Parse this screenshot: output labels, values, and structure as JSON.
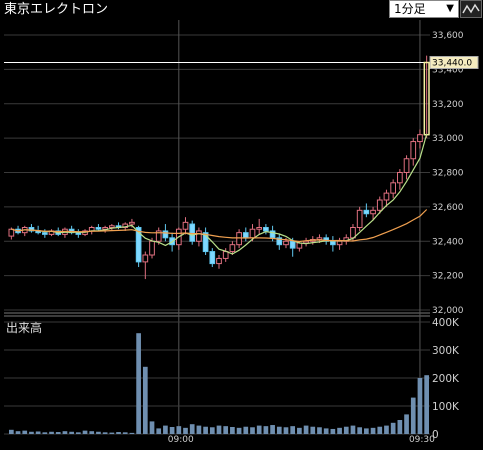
{
  "header": {
    "title": "東京エレクトロン",
    "interval_label": "1分足",
    "chart_type_icon": "line-chart-icon"
  },
  "colors": {
    "background": "#000000",
    "grid": "#3a3a3a",
    "up": "#f0a0a8",
    "down": "#7fd8ff",
    "ma_short": "#b9e08a",
    "ma_long": "#f0a050",
    "volume": "#6f8fb0",
    "price_line": "#f5f0a0"
  },
  "chart_data": {
    "type": "candlestick",
    "price_axis": {
      "ticks": [
        "33,600",
        "33,400",
        "33,200",
        "33,000",
        "32,800",
        "32,600",
        "32,400",
        "32,200",
        "32,000"
      ],
      "min": 32000,
      "max": 33600
    },
    "volume_axis": {
      "title": "出来高",
      "ticks": [
        "400K",
        "300K",
        "200K",
        "100K",
        "0"
      ],
      "max": 400000
    },
    "time_labels": [
      {
        "label": "09:00",
        "index": 25
      },
      {
        "label": "09:30",
        "index": 61
      }
    ],
    "last_price_label": "33,440.0",
    "last_price": 33440,
    "candles": [
      [
        32430,
        32480,
        32410,
        32470
      ],
      [
        32470,
        32490,
        32440,
        32450
      ],
      [
        32450,
        32490,
        32430,
        32480
      ],
      [
        32480,
        32500,
        32450,
        32460
      ],
      [
        32460,
        32490,
        32440,
        32450
      ],
      [
        32450,
        32470,
        32420,
        32440
      ],
      [
        32440,
        32470,
        32430,
        32460
      ],
      [
        32460,
        32480,
        32430,
        32440
      ],
      [
        32440,
        32480,
        32420,
        32470
      ],
      [
        32470,
        32490,
        32440,
        32450
      ],
      [
        32450,
        32470,
        32420,
        32440
      ],
      [
        32440,
        32470,
        32430,
        32460
      ],
      [
        32460,
        32490,
        32440,
        32480
      ],
      [
        32480,
        32500,
        32460,
        32470
      ],
      [
        32470,
        32490,
        32450,
        32480
      ],
      [
        32480,
        32500,
        32460,
        32490
      ],
      [
        32490,
        32510,
        32470,
        32480
      ],
      [
        32480,
        32510,
        32460,
        32500
      ],
      [
        32500,
        32530,
        32480,
        32510
      ],
      [
        32480,
        32490,
        32250,
        32280
      ],
      [
        32280,
        32340,
        32180,
        32320
      ],
      [
        32320,
        32420,
        32300,
        32400
      ],
      [
        32400,
        32480,
        32380,
        32460
      ],
      [
        32460,
        32500,
        32400,
        32420
      ],
      [
        32420,
        32450,
        32340,
        32380
      ],
      [
        32380,
        32480,
        32350,
        32470
      ],
      [
        32470,
        32540,
        32440,
        32510
      ],
      [
        32500,
        32520,
        32380,
        32400
      ],
      [
        32400,
        32480,
        32370,
        32460
      ],
      [
        32450,
        32480,
        32320,
        32340
      ],
      [
        32340,
        32360,
        32250,
        32270
      ],
      [
        32270,
        32320,
        32240,
        32300
      ],
      [
        32300,
        32360,
        32280,
        32340
      ],
      [
        32340,
        32400,
        32320,
        32380
      ],
      [
        32380,
        32470,
        32360,
        32450
      ],
      [
        32450,
        32480,
        32400,
        32420
      ],
      [
        32420,
        32500,
        32400,
        32470
      ],
      [
        32470,
        32530,
        32440,
        32480
      ],
      [
        32480,
        32500,
        32440,
        32460
      ],
      [
        32460,
        32490,
        32400,
        32420
      ],
      [
        32420,
        32440,
        32350,
        32380
      ],
      [
        32380,
        32420,
        32360,
        32400
      ],
      [
        32400,
        32420,
        32310,
        32360
      ],
      [
        32360,
        32400,
        32340,
        32390
      ],
      [
        32390,
        32420,
        32370,
        32400
      ],
      [
        32400,
        32430,
        32380,
        32410
      ],
      [
        32410,
        32440,
        32390,
        32420
      ],
      [
        32420,
        32440,
        32380,
        32400
      ],
      [
        32400,
        32430,
        32340,
        32380
      ],
      [
        32380,
        32420,
        32350,
        32400
      ],
      [
        32400,
        32440,
        32380,
        32420
      ],
      [
        32420,
        32500,
        32400,
        32480
      ],
      [
        32480,
        32600,
        32460,
        32580
      ],
      [
        32580,
        32620,
        32540,
        32560
      ],
      [
        32560,
        32600,
        32520,
        32580
      ],
      [
        32580,
        32660,
        32560,
        32640
      ],
      [
        32640,
        32700,
        32600,
        32680
      ],
      [
        32680,
        32760,
        32650,
        32740
      ],
      [
        32740,
        32820,
        32700,
        32800
      ],
      [
        32800,
        32900,
        32760,
        32880
      ],
      [
        32880,
        33000,
        32840,
        32980
      ],
      [
        32980,
        33050,
        32940,
        33020
      ],
      [
        33020,
        33480,
        33000,
        33440
      ]
    ],
    "volumes": [
      15,
      10,
      12,
      8,
      9,
      6,
      8,
      7,
      10,
      8,
      6,
      12,
      10,
      8,
      6,
      5,
      7,
      6,
      4,
      360,
      240,
      45,
      20,
      30,
      25,
      28,
      22,
      35,
      30,
      26,
      24,
      30,
      28,
      25,
      22,
      26,
      24,
      30,
      28,
      32,
      26,
      24,
      28,
      22,
      30,
      26,
      24,
      20,
      18,
      22,
      26,
      30,
      24,
      20,
      22,
      26,
      30,
      40,
      50,
      70,
      130,
      200,
      210
    ]
  }
}
